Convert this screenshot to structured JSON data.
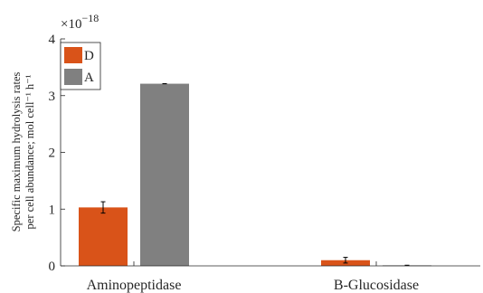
{
  "chart_data": {
    "type": "bar",
    "categories": [
      "Aminopeptidase",
      "B-Glucosidase"
    ],
    "series": [
      {
        "name": "D",
        "color": "#D95319",
        "values": [
          1.03,
          0.1
        ],
        "errors": [
          0.1,
          0.05
        ]
      },
      {
        "name": "A",
        "color": "#808080",
        "values": [
          3.21,
          0.01
        ],
        "errors": [
          0.0,
          0.0
        ]
      }
    ],
    "ylim": [
      0,
      4
    ],
    "yticks": [
      "0",
      "1",
      "2",
      "3",
      "4"
    ],
    "y_exponent": {
      "base": "×10",
      "power": "−18"
    },
    "ylabel_lines": [
      "Specific maximum hydrolysis rates",
      "per cell abundance; mol cell⁻¹ h⁻¹"
    ],
    "legend_position": "top-left",
    "grid": false
  }
}
